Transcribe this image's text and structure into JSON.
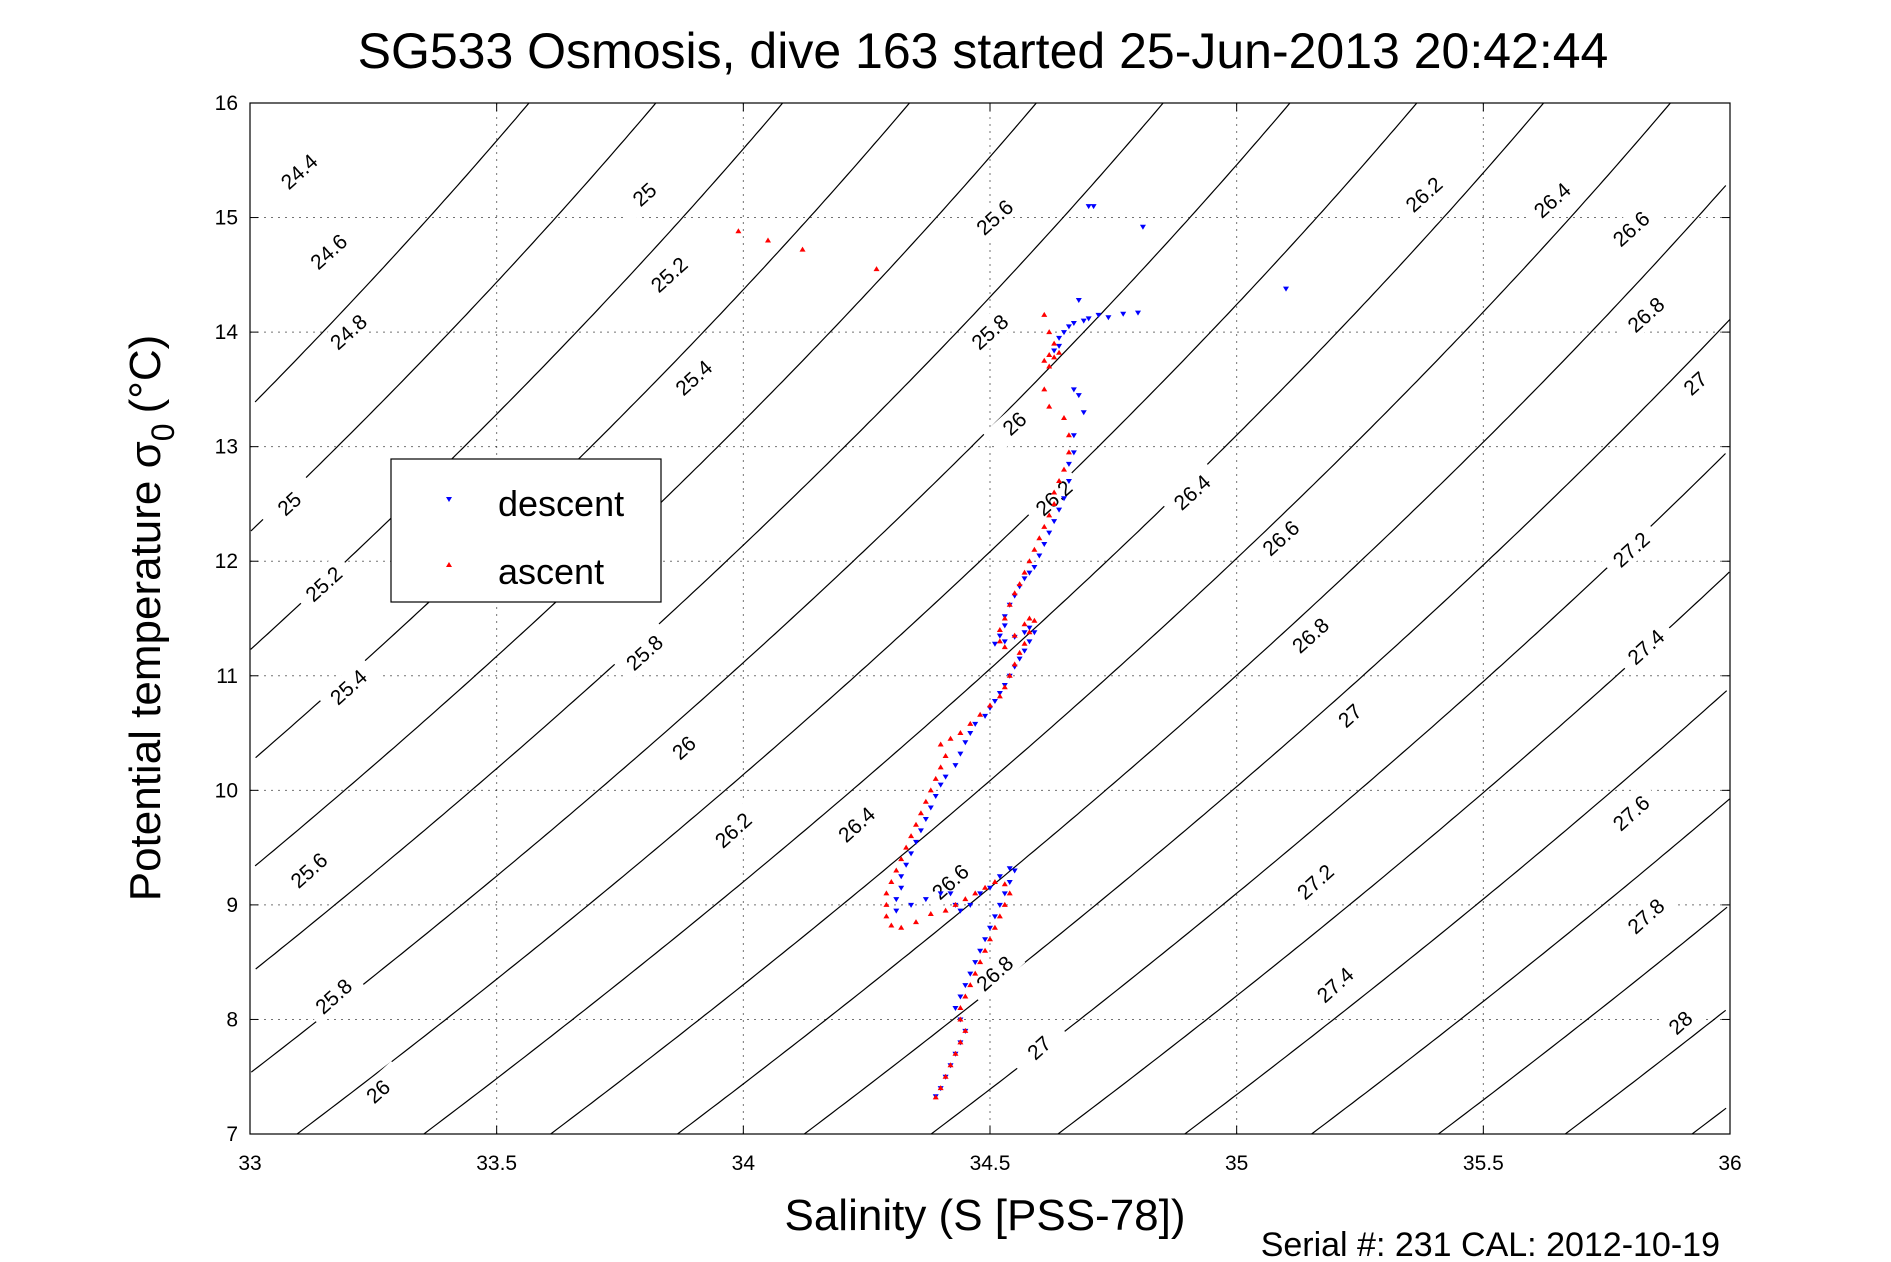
{
  "chart_data": {
    "type": "scatter",
    "title": "SG533 Osmosis, dive 163 started 25-Jun-2013 20:42:44",
    "xlabel": "Salinity (S [PSS-78])",
    "ylabel_main": "Potential temperature σ",
    "ylabel_sub": "0",
    "ylabel_unit": "(°C)",
    "xlim": [
      33,
      36
    ],
    "ylim": [
      7,
      16
    ],
    "x_ticks": [
      "33",
      "33.5",
      "34",
      "34.5",
      "35",
      "35.5",
      "36"
    ],
    "y_ticks": [
      "7",
      "8",
      "9",
      "10",
      "11",
      "12",
      "13",
      "14",
      "15",
      "16"
    ],
    "grid": true,
    "legend_placement": "center-left",
    "footer": "Serial #: 231  CAL: 2012-10-19",
    "density_contours": {
      "levels": [
        24.4,
        24.6,
        24.8,
        25,
        25.2,
        25.4,
        25.6,
        25.8,
        26,
        26.2,
        26.4,
        26.6,
        26.8,
        27,
        27.2,
        27.4,
        27.6,
        27.8,
        28
      ],
      "labels": [
        {
          "text": "24.4",
          "s": 33.1,
          "t": 15.4
        },
        {
          "text": "24.6",
          "s": 33.16,
          "t": 14.7
        },
        {
          "text": "24.8",
          "s": 33.2,
          "t": 14.0
        },
        {
          "text": "25",
          "s": 33.08,
          "t": 12.5
        },
        {
          "text": "25.2",
          "s": 33.15,
          "t": 11.8
        },
        {
          "text": "25.4",
          "s": 33.2,
          "t": 10.9
        },
        {
          "text": "25.6",
          "s": 33.12,
          "t": 9.3
        },
        {
          "text": "25.8",
          "s": 33.17,
          "t": 8.2
        },
        {
          "text": "26",
          "s": 33.26,
          "t": 7.37
        },
        {
          "text": "25",
          "s": 33.8,
          "t": 15.2
        },
        {
          "text": "25.2",
          "s": 33.85,
          "t": 14.5
        },
        {
          "text": "25.4",
          "s": 33.9,
          "t": 13.6
        },
        {
          "text": "25.8",
          "s": 33.8,
          "t": 11.2
        },
        {
          "text": "26",
          "s": 33.88,
          "t": 10.37
        },
        {
          "text": "26.2",
          "s": 33.98,
          "t": 9.65
        },
        {
          "text": "26.4",
          "s": 34.23,
          "t": 9.7
        },
        {
          "text": "26.6",
          "s": 34.42,
          "t": 9.2
        },
        {
          "text": "26.8",
          "s": 34.51,
          "t": 8.4
        },
        {
          "text": "27",
          "s": 34.6,
          "t": 7.75
        },
        {
          "text": "25.6",
          "s": 34.51,
          "t": 15.0
        },
        {
          "text": "25.8",
          "s": 34.5,
          "t": 14.0
        },
        {
          "text": "26",
          "s": 34.55,
          "t": 13.2
        },
        {
          "text": "26.2",
          "s": 34.63,
          "t": 12.55
        },
        {
          "text": "26.4",
          "s": 34.91,
          "t": 12.6
        },
        {
          "text": "26.6",
          "s": 35.09,
          "t": 12.2
        },
        {
          "text": "26.8",
          "s": 35.15,
          "t": 11.35
        },
        {
          "text": "27",
          "s": 35.23,
          "t": 10.65
        },
        {
          "text": "27.2",
          "s": 35.16,
          "t": 9.2
        },
        {
          "text": "27.4",
          "s": 35.2,
          "t": 8.3
        },
        {
          "text": "26.2",
          "s": 35.38,
          "t": 15.2
        },
        {
          "text": "26.4",
          "s": 35.64,
          "t": 15.15
        },
        {
          "text": "26.6",
          "s": 35.8,
          "t": 14.9
        },
        {
          "text": "26.8",
          "s": 35.83,
          "t": 14.15
        },
        {
          "text": "27",
          "s": 35.93,
          "t": 13.55
        },
        {
          "text": "27.2",
          "s": 35.8,
          "t": 12.1
        },
        {
          "text": "27.4",
          "s": 35.83,
          "t": 11.25
        },
        {
          "text": "27.6",
          "s": 35.8,
          "t": 9.8
        },
        {
          "text": "27.8",
          "s": 35.83,
          "t": 8.9
        },
        {
          "text": "28",
          "s": 35.9,
          "t": 7.97
        }
      ]
    },
    "series": [
      {
        "name": "descent",
        "color": "#0000ff",
        "marker": "triangle-down",
        "points": [
          [
            34.7,
            15.1
          ],
          [
            34.71,
            15.1
          ],
          [
            34.81,
            14.92
          ],
          [
            35.1,
            14.38
          ],
          [
            34.68,
            14.28
          ],
          [
            34.72,
            14.15
          ],
          [
            34.74,
            14.13
          ],
          [
            34.77,
            14.16
          ],
          [
            34.8,
            14.17
          ],
          [
            34.64,
            13.95
          ],
          [
            34.65,
            14.0
          ],
          [
            34.66,
            14.05
          ],
          [
            34.67,
            14.08
          ],
          [
            34.69,
            14.1
          ],
          [
            34.7,
            14.12
          ],
          [
            34.64,
            13.88
          ],
          [
            34.63,
            13.84
          ],
          [
            34.67,
            13.5
          ],
          [
            34.68,
            13.45
          ],
          [
            34.69,
            13.3
          ],
          [
            34.67,
            13.1
          ],
          [
            34.67,
            12.95
          ],
          [
            34.66,
            12.85
          ],
          [
            34.66,
            12.7
          ],
          [
            34.65,
            12.55
          ],
          [
            34.64,
            12.45
          ],
          [
            34.63,
            12.35
          ],
          [
            34.62,
            12.25
          ],
          [
            34.61,
            12.15
          ],
          [
            34.6,
            12.05
          ],
          [
            34.59,
            11.95
          ],
          [
            34.58,
            11.9
          ],
          [
            34.57,
            11.85
          ],
          [
            34.56,
            11.78
          ],
          [
            34.55,
            11.7
          ],
          [
            34.54,
            11.62
          ],
          [
            34.53,
            11.52
          ],
          [
            34.53,
            11.44
          ],
          [
            34.52,
            11.35
          ],
          [
            34.51,
            11.28
          ],
          [
            34.53,
            11.3
          ],
          [
            34.55,
            11.34
          ],
          [
            34.57,
            11.38
          ],
          [
            34.58,
            11.42
          ],
          [
            34.59,
            11.38
          ],
          [
            34.58,
            11.3
          ],
          [
            34.57,
            11.22
          ],
          [
            34.56,
            11.15
          ],
          [
            34.55,
            11.08
          ],
          [
            34.54,
            11.0
          ],
          [
            34.53,
            10.92
          ],
          [
            34.52,
            10.85
          ],
          [
            34.51,
            10.78
          ],
          [
            34.5,
            10.72
          ],
          [
            34.49,
            10.65
          ],
          [
            34.47,
            10.58
          ],
          [
            34.46,
            10.5
          ],
          [
            34.45,
            10.42
          ],
          [
            34.44,
            10.32
          ],
          [
            34.43,
            10.22
          ],
          [
            34.41,
            10.12
          ],
          [
            34.4,
            10.05
          ],
          [
            34.39,
            9.95
          ],
          [
            34.38,
            9.85
          ],
          [
            34.37,
            9.75
          ],
          [
            34.36,
            9.65
          ],
          [
            34.35,
            9.55
          ],
          [
            34.34,
            9.45
          ],
          [
            34.33,
            9.35
          ],
          [
            34.32,
            9.25
          ],
          [
            34.32,
            9.15
          ],
          [
            34.31,
            9.05
          ],
          [
            34.31,
            8.95
          ],
          [
            34.34,
            9.0
          ],
          [
            34.37,
            9.05
          ],
          [
            34.4,
            9.1
          ],
          [
            34.42,
            9.1
          ],
          [
            34.43,
            9.0
          ],
          [
            34.44,
            8.95
          ],
          [
            34.46,
            9.0
          ],
          [
            34.48,
            9.1
          ],
          [
            34.5,
            9.15
          ],
          [
            34.52,
            9.25
          ],
          [
            34.54,
            9.32
          ],
          [
            34.55,
            9.3
          ],
          [
            34.54,
            9.2
          ],
          [
            34.53,
            9.1
          ],
          [
            34.52,
            9.0
          ],
          [
            34.51,
            8.9
          ],
          [
            34.5,
            8.8
          ],
          [
            34.49,
            8.7
          ],
          [
            34.48,
            8.6
          ],
          [
            34.47,
            8.5
          ],
          [
            34.46,
            8.4
          ],
          [
            34.45,
            8.3
          ],
          [
            34.44,
            8.2
          ],
          [
            34.43,
            8.1
          ],
          [
            34.44,
            8.0
          ],
          [
            34.45,
            7.9
          ],
          [
            34.44,
            7.8
          ],
          [
            34.43,
            7.7
          ],
          [
            34.42,
            7.6
          ],
          [
            34.41,
            7.5
          ],
          [
            34.4,
            7.4
          ],
          [
            34.39,
            7.33
          ]
        ]
      },
      {
        "name": "ascent",
        "color": "#ff0000",
        "marker": "triangle-up",
        "points": [
          [
            33.99,
            14.88
          ],
          [
            34.05,
            14.8
          ],
          [
            34.12,
            14.72
          ],
          [
            34.27,
            14.55
          ],
          [
            34.61,
            14.15
          ],
          [
            34.62,
            14.0
          ],
          [
            34.63,
            13.9
          ],
          [
            34.62,
            13.8
          ],
          [
            34.61,
            13.75
          ],
          [
            34.62,
            13.7
          ],
          [
            34.63,
            13.78
          ],
          [
            34.64,
            13.82
          ],
          [
            34.61,
            13.5
          ],
          [
            34.62,
            13.35
          ],
          [
            34.65,
            13.25
          ],
          [
            34.66,
            13.1
          ],
          [
            34.66,
            12.95
          ],
          [
            34.65,
            12.8
          ],
          [
            34.64,
            12.7
          ],
          [
            34.63,
            12.6
          ],
          [
            34.63,
            12.5
          ],
          [
            34.62,
            12.4
          ],
          [
            34.61,
            12.3
          ],
          [
            34.6,
            12.2
          ],
          [
            34.59,
            12.1
          ],
          [
            34.58,
            12.0
          ],
          [
            34.57,
            11.9
          ],
          [
            34.56,
            11.8
          ],
          [
            34.55,
            11.72
          ],
          [
            34.54,
            11.62
          ],
          [
            34.53,
            11.5
          ],
          [
            34.52,
            11.4
          ],
          [
            34.52,
            11.3
          ],
          [
            34.53,
            11.25
          ],
          [
            34.55,
            11.35
          ],
          [
            34.57,
            11.45
          ],
          [
            34.58,
            11.5
          ],
          [
            34.59,
            11.48
          ],
          [
            34.58,
            11.38
          ],
          [
            34.57,
            11.28
          ],
          [
            34.56,
            11.2
          ],
          [
            34.55,
            11.1
          ],
          [
            34.54,
            11.0
          ],
          [
            34.53,
            10.9
          ],
          [
            34.52,
            10.82
          ],
          [
            34.5,
            10.74
          ],
          [
            34.48,
            10.66
          ],
          [
            34.46,
            10.58
          ],
          [
            34.44,
            10.5
          ],
          [
            34.42,
            10.45
          ],
          [
            34.4,
            10.4
          ],
          [
            34.41,
            10.3
          ],
          [
            34.4,
            10.2
          ],
          [
            34.39,
            10.1
          ],
          [
            34.38,
            10.0
          ],
          [
            34.37,
            9.9
          ],
          [
            34.36,
            9.8
          ],
          [
            34.35,
            9.7
          ],
          [
            34.34,
            9.6
          ],
          [
            34.33,
            9.5
          ],
          [
            34.32,
            9.4
          ],
          [
            34.31,
            9.3
          ],
          [
            34.3,
            9.2
          ],
          [
            34.29,
            9.1
          ],
          [
            34.29,
            9.0
          ],
          [
            34.29,
            8.9
          ],
          [
            34.3,
            8.82
          ],
          [
            34.32,
            8.8
          ],
          [
            34.35,
            8.85
          ],
          [
            34.38,
            8.92
          ],
          [
            34.41,
            8.95
          ],
          [
            34.43,
            9.0
          ],
          [
            34.45,
            9.05
          ],
          [
            34.47,
            9.1
          ],
          [
            34.49,
            9.15
          ],
          [
            34.51,
            9.2
          ],
          [
            34.53,
            9.18
          ],
          [
            34.54,
            9.1
          ],
          [
            34.53,
            9.0
          ],
          [
            34.52,
            8.9
          ],
          [
            34.51,
            8.8
          ],
          [
            34.5,
            8.7
          ],
          [
            34.49,
            8.6
          ],
          [
            34.48,
            8.5
          ],
          [
            34.47,
            8.4
          ],
          [
            34.46,
            8.3
          ],
          [
            34.45,
            8.2
          ],
          [
            34.44,
            8.1
          ],
          [
            34.44,
            8.0
          ],
          [
            34.45,
            7.9
          ],
          [
            34.44,
            7.8
          ],
          [
            34.43,
            7.7
          ],
          [
            34.42,
            7.6
          ],
          [
            34.41,
            7.5
          ],
          [
            34.4,
            7.4
          ],
          [
            34.39,
            7.32
          ]
        ]
      }
    ]
  }
}
